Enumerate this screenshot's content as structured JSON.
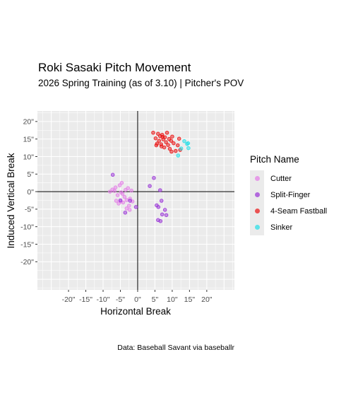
{
  "chart_data": {
    "type": "scatter",
    "title": "Roki Sasaki Pitch Movement",
    "subtitle": "2026 Spring Training (as of 3.10) | Pitcher's POV",
    "xlabel": "Horizontal Break",
    "ylabel": "Induced Vertical Break",
    "caption": "Data: Baseball Savant via baseballr",
    "xlim": [
      -29,
      28
    ],
    "ylim": [
      -28,
      23
    ],
    "x_ticks": [
      -20,
      -15,
      -10,
      -5,
      0,
      5,
      10,
      15,
      20
    ],
    "x_tick_labels": [
      "-20\"",
      "-15\"",
      "-10\"",
      "-5\"",
      "0\"",
      "5\"",
      "10\"",
      "15\"",
      "20\""
    ],
    "y_ticks": [
      -20,
      -15,
      -10,
      -5,
      0,
      5,
      10,
      15,
      20
    ],
    "y_tick_labels": [
      "-20\"",
      "-15\"",
      "-10\"",
      "-5\"",
      "0\"",
      "5\"",
      "10\"",
      "15\"",
      "20\""
    ],
    "grid": true,
    "legend_title": "Pitch Name",
    "legend_position": "right",
    "series": [
      {
        "name": "Cutter",
        "color": "#e47de8",
        "points": [
          [
            -8,
            0
          ],
          [
            -7.3,
            0.6
          ],
          [
            -6.7,
            0.2
          ],
          [
            -6.4,
            1.2
          ],
          [
            -5.8,
            -1
          ],
          [
            -5.5,
            -3.4
          ],
          [
            -5.2,
            1.8
          ],
          [
            -4.9,
            -2.8
          ],
          [
            -4.6,
            2.5
          ],
          [
            -4.4,
            -0.6
          ],
          [
            -4.2,
            -3.1
          ],
          [
            -3.8,
            -1.5
          ],
          [
            -3.5,
            0.5
          ],
          [
            -3.2,
            -2.4
          ],
          [
            -2.8,
            1
          ],
          [
            -2.5,
            -4
          ],
          [
            -2.2,
            -2
          ],
          [
            -1.8,
            0.3
          ],
          [
            -1.5,
            -2.8
          ],
          [
            -6.2,
            -2.6
          ],
          [
            -3.2,
            -4.8
          ],
          [
            -2.3,
            -5.2
          ],
          [
            -4.8,
            -0.2
          ]
        ]
      },
      {
        "name": "Split-Finger",
        "color": "#9a33d8",
        "points": [
          [
            -7.2,
            4.8
          ],
          [
            -5,
            -2.5
          ],
          [
            -3.6,
            -6
          ],
          [
            -2.2,
            -2.6
          ],
          [
            -0.5,
            -4.4
          ],
          [
            3.5,
            1.6
          ],
          [
            4.7,
            3.9
          ],
          [
            5.5,
            -3.9
          ],
          [
            6,
            -4.4
          ],
          [
            6.5,
            0.4
          ],
          [
            6.9,
            -2.6
          ],
          [
            5.9,
            -8.1
          ],
          [
            6.6,
            -8.4
          ],
          [
            7.1,
            -6.5
          ],
          [
            7.9,
            -5.2
          ],
          [
            8.3,
            -6.7
          ]
        ]
      },
      {
        "name": "4-Seam Fastball",
        "color": "#ea1212",
        "points": [
          [
            4.5,
            16.8
          ],
          [
            5.2,
            15.2
          ],
          [
            5.6,
            13.7
          ],
          [
            5.9,
            16.5
          ],
          [
            6.2,
            14.5
          ],
          [
            6.5,
            15.8
          ],
          [
            6.8,
            13.5
          ],
          [
            7.1,
            16.2
          ],
          [
            7.4,
            14.9
          ],
          [
            7.7,
            12.6
          ],
          [
            7.9,
            15.5
          ],
          [
            8.2,
            14.1
          ],
          [
            8.5,
            16.8
          ],
          [
            8.8,
            13.3
          ],
          [
            9.1,
            15
          ],
          [
            9.3,
            12.2
          ],
          [
            9.7,
            14.5
          ],
          [
            10,
            15.7
          ],
          [
            10.4,
            13.8
          ],
          [
            11,
            11.6
          ],
          [
            11.6,
            13.2
          ],
          [
            12,
            15.1
          ],
          [
            12.3,
            11.9
          ],
          [
            5.4,
            13.2
          ],
          [
            6.9,
            12.9
          ],
          [
            9.8,
            11.4
          ],
          [
            7.2,
            15.6
          ]
        ]
      },
      {
        "name": "Sinker",
        "color": "#23dfe8",
        "points": [
          [
            11.7,
            10.3
          ],
          [
            12.6,
            12.3
          ],
          [
            13.5,
            14.4
          ],
          [
            14.3,
            13.6
          ],
          [
            14.7,
            12.4
          ],
          [
            14.6,
            13.8
          ]
        ]
      }
    ]
  }
}
